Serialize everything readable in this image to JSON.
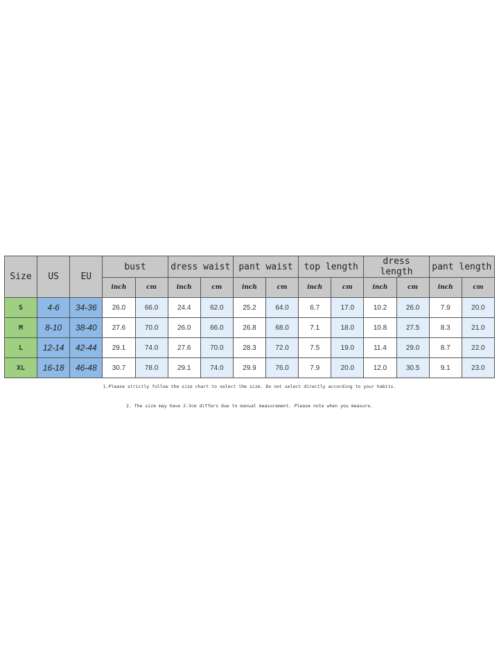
{
  "table": {
    "corner_headers": [
      "Size",
      "US",
      "EU"
    ],
    "groups": [
      "bust",
      "dress waist",
      "pant waist",
      "top length",
      "dress length",
      "pant length"
    ],
    "units": [
      "inch",
      "cm"
    ],
    "rows": [
      {
        "size": "S",
        "us": "4-6",
        "eu": "34-36",
        "values": [
          "26.0",
          "66.0",
          "24.4",
          "62.0",
          "25.2",
          "64.0",
          "6.7",
          "17.0",
          "10.2",
          "26.0",
          "7.9",
          "20.0"
        ]
      },
      {
        "size": "M",
        "us": "8-10",
        "eu": "38-40",
        "values": [
          "27.6",
          "70.0",
          "26.0",
          "66.0",
          "26.8",
          "68.0",
          "7.1",
          "18.0",
          "10.8",
          "27.5",
          "8.3",
          "21.0"
        ]
      },
      {
        "size": "L",
        "us": "12-14",
        "eu": "42-44",
        "values": [
          "29.1",
          "74.0",
          "27.6",
          "70.0",
          "28.3",
          "72.0",
          "7.5",
          "19.0",
          "11.4",
          "29.0",
          "8.7",
          "22.0"
        ]
      },
      {
        "size": "XL",
        "us": "16-18",
        "eu": "46-48",
        "values": [
          "30.7",
          "78.0",
          "29.1",
          "74.0",
          "29.9",
          "76.0",
          "7.9",
          "20.0",
          "12.0",
          "30.5",
          "9.1",
          "23.0"
        ]
      }
    ]
  },
  "notes": [
    "1.Please strictly follow the size chart to select the size. Do not select directly according to your habits.",
    "2. The size may have 2-3cm differs due to manual measurement. Please note when you measure."
  ],
  "colors": {
    "header": "#c8c8c8",
    "size_col": "#9fcf80",
    "us_eu_cols": "#8fb9e6",
    "cm_cols": "#e2eef9"
  }
}
